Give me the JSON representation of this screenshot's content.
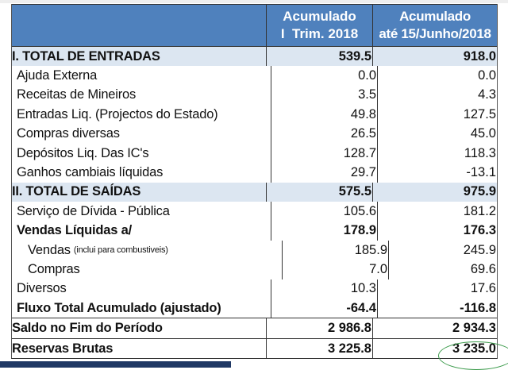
{
  "table": {
    "header": {
      "col1": [
        "Acumulado",
        "I  Trim. 2018"
      ],
      "col2": [
        "Acumulado",
        "até 15/Junho/2018"
      ]
    },
    "rows": [
      {
        "label": "I. TOTAL DE ENTRADAS",
        "v1": "539.5",
        "v2": "918.0",
        "style": "section"
      },
      {
        "label": "Ajuda Externa",
        "v1": "0.0",
        "v2": "0.0",
        "style": "ind1"
      },
      {
        "label": "Receitas de Mineiros",
        "v1": "3.5",
        "v2": "4.3",
        "style": "ind1"
      },
      {
        "label": "Entradas Liq. (Projectos do Estado)",
        "v1": "49.8",
        "v2": "127.5",
        "style": "ind1"
      },
      {
        "label": "Compras diversas",
        "v1": "26.5",
        "v2": "45.0",
        "style": "ind1"
      },
      {
        "label": "Depósitos Liq. Das IC's",
        "v1": "128.7",
        "v2": "118.3",
        "style": "ind1"
      },
      {
        "label": "Ganhos cambiais líquidas",
        "v1": "29.7",
        "v2": "-13.1",
        "style": "ind1"
      },
      {
        "label": "II. TOTAL DE SAÍDAS",
        "v1": "575.5",
        "v2": "975.9",
        "style": "section"
      },
      {
        "label": "Serviço de Dívida - Pública",
        "v1": "105.6",
        "v2": "181.2",
        "style": "ind1"
      },
      {
        "label": "Vendas Líquidas a/",
        "v1": "178.9",
        "v2": "176.3",
        "style": "ind1 bold"
      },
      {
        "label": "Vendas",
        "note": "(inclui para combustiveis)",
        "v1": "185.9",
        "v2": "245.9",
        "style": "ind2"
      },
      {
        "label": "Compras",
        "v1": "7.0",
        "v2": "69.6",
        "style": "ind2"
      },
      {
        "label": "Diversos",
        "v1": "10.3",
        "v2": "17.6",
        "style": "ind1"
      },
      {
        "label": "Fluxo Total Acumulado (ajustado)",
        "v1": "-64.4",
        "v2": "-116.8",
        "style": "ind1 bold"
      },
      {
        "label": "Saldo no Fim do Período",
        "v1": "2 986.8",
        "v2": "2 934.3",
        "style": "boxed bold"
      },
      {
        "label": "Reservas Brutas",
        "v1": "3 225.8",
        "v2": "3 235.0",
        "style": "boxed bold"
      }
    ]
  },
  "colors": {
    "header_bg": "#4f81bd",
    "section_bg": "#dce6f1",
    "highlight_ellipse": "#3a9a4a",
    "bottom_bar": "#1f3864"
  }
}
